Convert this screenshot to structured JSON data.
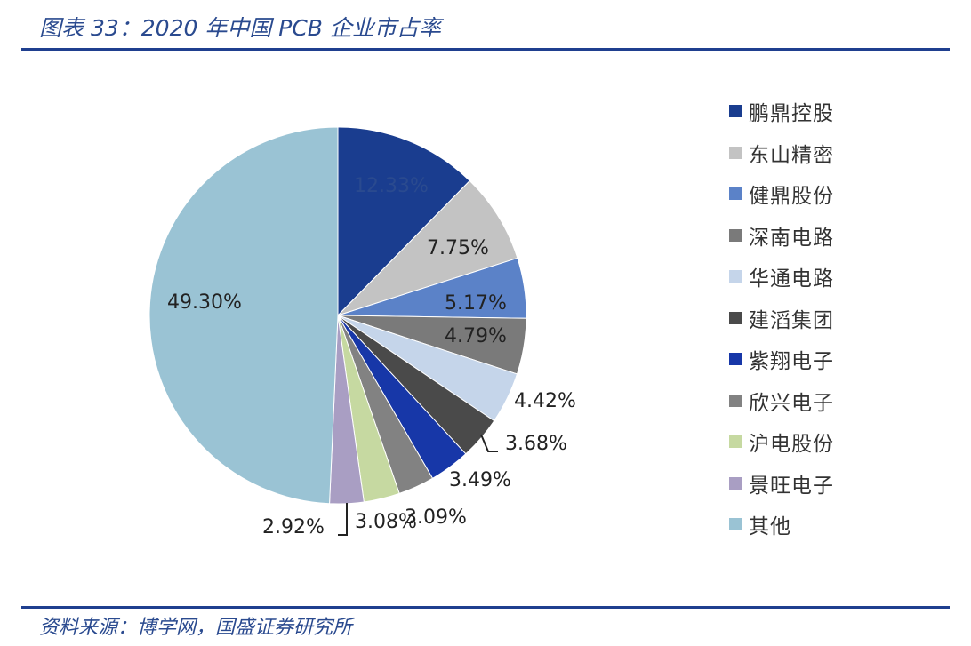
{
  "header": {
    "title": "图表 33：2020 年中国 PCB 企业市占率"
  },
  "footer": {
    "source": "资料来源：博学网，国盛证券研究所"
  },
  "chart_data": {
    "type": "pie",
    "title": "",
    "start_angle_deg": 0,
    "direction": "clockwise",
    "legend_position": "right",
    "slices": [
      {
        "name": "鹏鼎控股",
        "value": 12.33,
        "label": "12.33%",
        "color": "#1a3d8f"
      },
      {
        "name": "东山精密",
        "value": 7.75,
        "label": "7.75%",
        "color": "#c3c3c3"
      },
      {
        "name": "健鼎股份",
        "value": 5.17,
        "label": "5.17%",
        "color": "#5b82c8"
      },
      {
        "name": "深南电路",
        "value": 4.79,
        "label": "4.79%",
        "color": "#7a7a7a"
      },
      {
        "name": "华通电路",
        "value": 4.42,
        "label": "4.42%",
        "color": "#c5d5ea"
      },
      {
        "name": "建滔集团",
        "value": 3.68,
        "label": "3.68%",
        "color": "#4a4a4a"
      },
      {
        "name": "紫翔电子",
        "value": 3.49,
        "label": "3.49%",
        "color": "#1737a8"
      },
      {
        "name": "欣兴电子",
        "value": 3.09,
        "label": "3.09%",
        "color": "#828282"
      },
      {
        "name": "沪电股份",
        "value": 3.08,
        "label": "3.08%",
        "color": "#c6d9a1"
      },
      {
        "name": "景旺电子",
        "value": 2.92,
        "label": "2.92%",
        "color": "#a99ec3"
      },
      {
        "name": "其他",
        "value": 49.3,
        "label": "49.30%",
        "color": "#9ac3d4"
      }
    ]
  }
}
